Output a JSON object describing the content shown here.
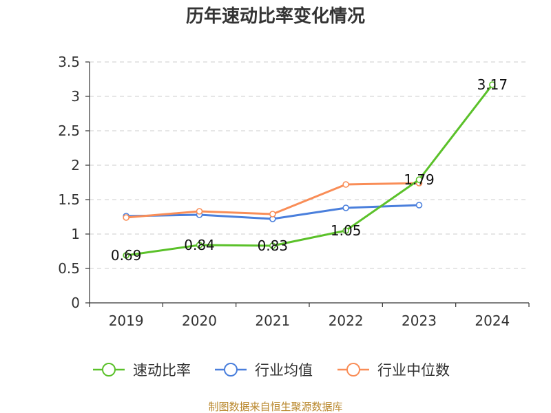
{
  "chart_data": {
    "type": "line",
    "title": "历年速动比率变化情况",
    "xlabel": "",
    "ylabel": "",
    "categories": [
      "2019",
      "2020",
      "2021",
      "2022",
      "2023",
      "2024"
    ],
    "ylim": [
      0,
      3.5
    ],
    "yticks": [
      0,
      0.5,
      1,
      1.5,
      2,
      2.5,
      3,
      3.5
    ],
    "ytick_labels": [
      "0",
      "0.5",
      "1",
      "1.5",
      "2",
      "2.5",
      "3",
      "3.5"
    ],
    "grid": true,
    "legend_position": "bottom",
    "series": [
      {
        "name": "速动比率",
        "color": "#5bc12a",
        "values": [
          0.69,
          0.84,
          0.83,
          1.05,
          1.79,
          3.17
        ],
        "labels": [
          "0.69",
          "0.84",
          "0.83",
          "1.05",
          "1.79",
          "3.17"
        ]
      },
      {
        "name": "行业均值",
        "color": "#4a7fdc",
        "values": [
          1.26,
          1.28,
          1.22,
          1.38,
          1.42,
          null
        ]
      },
      {
        "name": "行业中位数",
        "color": "#f98d57",
        "values": [
          1.24,
          1.33,
          1.29,
          1.72,
          1.74,
          null
        ]
      }
    ]
  },
  "source": "制图数据来自恒生聚源数据库"
}
